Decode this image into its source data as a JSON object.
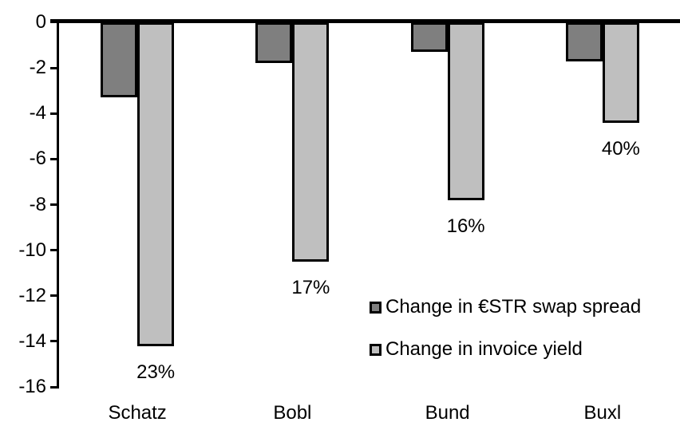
{
  "chart_data": {
    "type": "bar",
    "orientation": "vertical-negative",
    "title": "",
    "xlabel": "",
    "ylabel": "",
    "categories": [
      "Schatz",
      "Bobl",
      "Bund",
      "Buxl"
    ],
    "series": [
      {
        "name": "Change in €STR swap spread",
        "color": "#7f7f7f",
        "values": [
          -3.3,
          -1.8,
          -1.3,
          -1.7
        ]
      },
      {
        "name": "Change in invoice yield",
        "color": "#bfbfbf",
        "values": [
          -14.2,
          -10.5,
          -7.8,
          -4.4
        ],
        "bar_labels": [
          "23%",
          "17%",
          "16%",
          "40%"
        ]
      }
    ],
    "ylim": [
      -16,
      0
    ],
    "yticks": [
      "0",
      "-2",
      "-4",
      "-6",
      "-8",
      "-10",
      "-12",
      "-14",
      "-16"
    ],
    "grid": false,
    "legend_position": "inside-right-middle",
    "axis_color": "#000000",
    "bar_border_color": "#000000",
    "background_color": "#ffffff"
  }
}
